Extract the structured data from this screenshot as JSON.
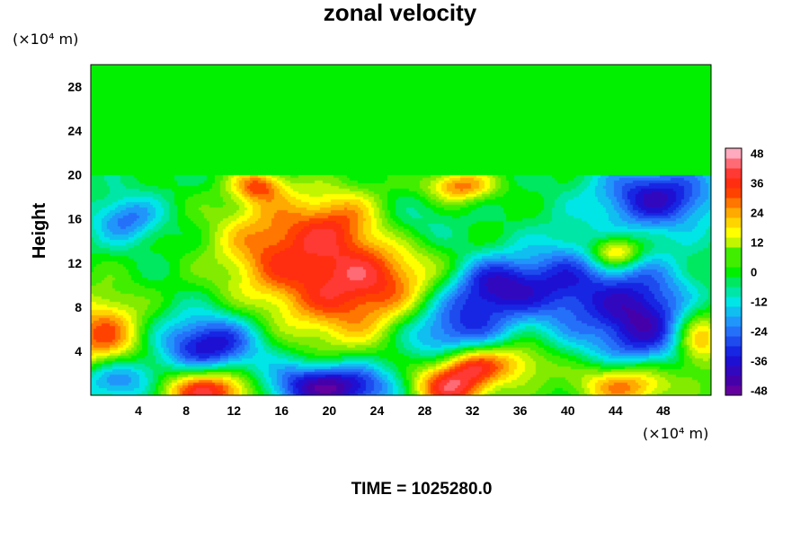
{
  "chart_data": {
    "type": "heatmap",
    "title": "zonal velocity",
    "ylabel": "Height",
    "xlabel": "",
    "x_unit": "(×10⁴ m)",
    "y_unit": "(×10⁴ m)",
    "xlim": [
      0,
      52
    ],
    "ylim": [
      0,
      30
    ],
    "x_ticks": [
      "4",
      "8",
      "12",
      "16",
      "20",
      "24",
      "28",
      "32",
      "36",
      "40",
      "44",
      "48"
    ],
    "y_ticks": [
      "4",
      "8",
      "12",
      "16",
      "20",
      "24",
      "28"
    ],
    "colorbar": {
      "range": [
        -50,
        50
      ],
      "step": 4,
      "tick_labels": [
        "48",
        "36",
        "24",
        "12",
        "0",
        "-12",
        "-24",
        "-36",
        "-48"
      ]
    },
    "background_value": 0,
    "features": [
      {
        "x": 23,
        "y": 10,
        "sx": 5.5,
        "sy": 4,
        "value": 42
      },
      {
        "x": 15,
        "y": 14,
        "sx": 3.5,
        "sy": 3.5,
        "value": 24
      },
      {
        "x": 21,
        "y": 16,
        "sx": 2.5,
        "sy": 2,
        "value": 18
      },
      {
        "x": 1,
        "y": 5,
        "sx": 2.5,
        "sy": 3,
        "value": 34
      },
      {
        "x": 2,
        "y": 1.5,
        "sx": 2.5,
        "sy": 1.5,
        "value": -34
      },
      {
        "x": 10,
        "y": 0.5,
        "sx": 3,
        "sy": 1.5,
        "value": 46
      },
      {
        "x": 10,
        "y": 4.5,
        "sx": 3,
        "sy": 2,
        "value": -38
      },
      {
        "x": 20,
        "y": 0.8,
        "sx": 4,
        "sy": 1.5,
        "value": -46
      },
      {
        "x": 30,
        "y": 0.8,
        "sx": 2.5,
        "sy": 1.5,
        "value": 44
      },
      {
        "x": 32,
        "y": 3,
        "sx": 2,
        "sy": 1.2,
        "value": 32
      },
      {
        "x": 36,
        "y": 3,
        "sx": 2,
        "sy": 1.5,
        "value": 20
      },
      {
        "x": 45,
        "y": 1,
        "sx": 3,
        "sy": 1.5,
        "value": 36
      },
      {
        "x": 30,
        "y": 6,
        "sx": 3.5,
        "sy": 2.5,
        "value": -36
      },
      {
        "x": 34,
        "y": 10,
        "sx": 3,
        "sy": 2,
        "value": -38
      },
      {
        "x": 46,
        "y": 7,
        "sx": 3,
        "sy": 3.5,
        "value": -40
      },
      {
        "x": 47.5,
        "y": 18,
        "sx": 3.5,
        "sy": 2,
        "value": -36
      },
      {
        "x": 44,
        "y": 13,
        "sx": 1.5,
        "sy": 1,
        "value": 32
      },
      {
        "x": 31,
        "y": 19,
        "sx": 2,
        "sy": 1,
        "value": 30
      },
      {
        "x": 14,
        "y": 19,
        "sx": 1.5,
        "sy": 1,
        "value": 26
      },
      {
        "x": 3,
        "y": 16,
        "sx": 2,
        "sy": 1.5,
        "value": -22
      },
      {
        "x": 40,
        "y": 10,
        "sx": 2.5,
        "sy": 3,
        "value": -24
      },
      {
        "x": 27,
        "y": 15,
        "sx": 3,
        "sy": 2,
        "value": -16
      },
      {
        "x": 51,
        "y": 5,
        "sx": 1.5,
        "sy": 2,
        "value": 28
      }
    ],
    "top_uniform_above_y": 20,
    "top_value": 0
  },
  "footer": {
    "text": "TIME = 1025280.0"
  }
}
